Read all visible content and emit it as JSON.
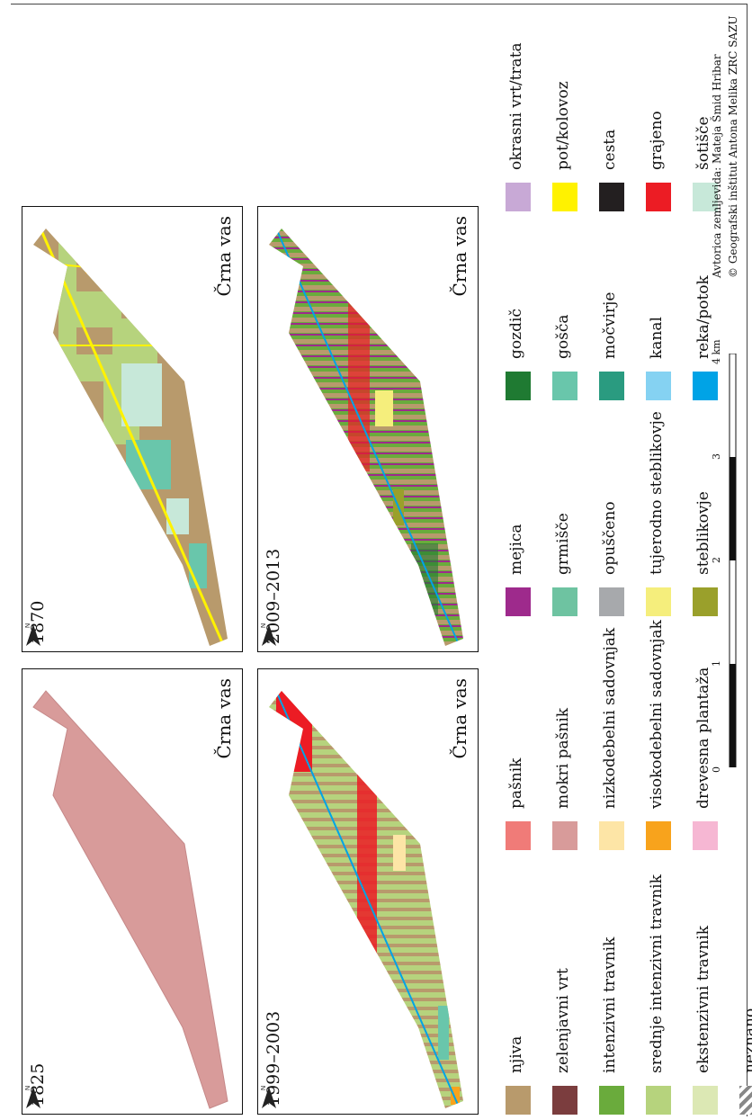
{
  "panels": [
    {
      "year": "1825",
      "place": "Črna vas",
      "north": "N"
    },
    {
      "year": "1870",
      "place": "Črna vas",
      "north": "N"
    },
    {
      "year": "1999–2003",
      "place": "Črna vas",
      "north": "N"
    },
    {
      "year": "2009–2013",
      "place": "Črna vas",
      "north": "N"
    }
  ],
  "legend": [
    {
      "label": "njiva",
      "color": "#b89a6c"
    },
    {
      "label": "zelenjavni vrt",
      "color": "#7b3d3e"
    },
    {
      "label": "intenzivni travnik",
      "color": "#6aab3c"
    },
    {
      "label": "srednje intenzivni travnik",
      "color": "#b6d37d"
    },
    {
      "label": "ekstenzivni travnik",
      "color": "#dce8b4"
    },
    {
      "label": "neznano",
      "color": "hatched"
    },
    {
      "label": "pašnik",
      "color": "#f07b78"
    },
    {
      "label": "mokri pašnik",
      "color": "#d89b9a"
    },
    {
      "label": "nizkodebelni sadovnjak",
      "color": "#fde5a6"
    },
    {
      "label": "visokodebelni sadovnjak",
      "color": "#f8a31c"
    },
    {
      "label": "drevesna plantaža",
      "color": "#f6b7d3"
    },
    {
      "label": "mejica",
      "color": "#9e2a8c"
    },
    {
      "label": "grmišče",
      "color": "#6ec3a1"
    },
    {
      "label": "opuščeno",
      "color": "#a7a9ac"
    },
    {
      "label": "tujerodno steblikovje",
      "color": "#f5ee7c"
    },
    {
      "label": "steblikovje",
      "color": "#9aa02b"
    },
    {
      "label": "gozdič",
      "color": "#1f7a32"
    },
    {
      "label": "gošča",
      "color": "#69c6ab"
    },
    {
      "label": "močvirje",
      "color": "#2a9b80"
    },
    {
      "label": "kanal",
      "color": "#85d2f2"
    },
    {
      "label": "reka/potok",
      "color": "#00a3e6"
    },
    {
      "label": "okrasni vrt/trata",
      "color": "#c8a9d6"
    },
    {
      "label": "pot/kolovoz",
      "color": "#fff200"
    },
    {
      "label": "cesta",
      "color": "#231f20"
    },
    {
      "label": "grajeno",
      "color": "#ec1c24"
    },
    {
      "label": "šotišče",
      "color": "#c7e8d9"
    }
  ],
  "scale": {
    "ticks": [
      "0",
      "1",
      "2",
      "3",
      "4 km"
    ]
  },
  "credits": [
    "Avtorica zemljevida: Mateja Šmid Hribar",
    "© Geografski inštitut Antona Melika ZRC SAZU"
  ]
}
